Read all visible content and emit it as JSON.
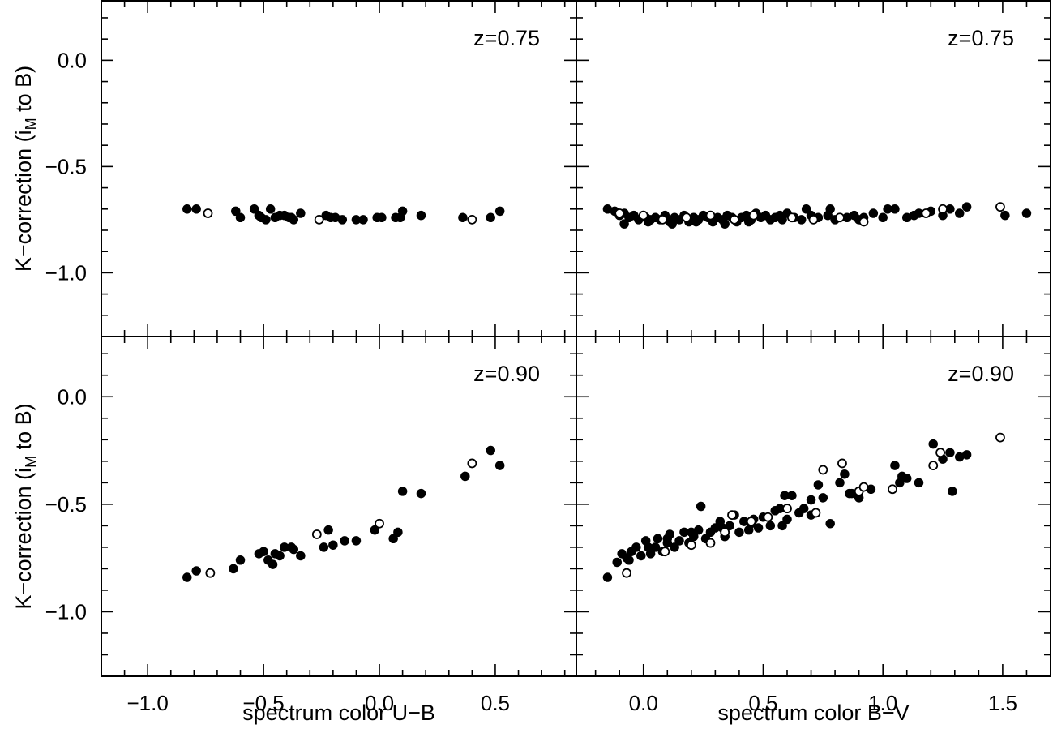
{
  "chart_data": [
    {
      "type": "scatter",
      "panel": "top-left",
      "annotation": "z=0.75",
      "xlabel": "",
      "ylabel": "K−correction (i",
      "ylabel_sub": "M",
      "ylabel_end": " to B)",
      "xlim": [
        -1.2,
        0.85
      ],
      "ylim": [
        -1.3,
        0.28
      ],
      "x_ticks": [
        -1.0,
        -0.5,
        0.0,
        0.5
      ],
      "x_tick_labels": [],
      "y_ticks": [
        0.0,
        -0.5,
        -1.0
      ],
      "y_tick_labels": [
        "0.0",
        "−0.5",
        "−1.0"
      ],
      "series": [
        {
          "marker": "filled",
          "x": [
            -0.83,
            -0.79,
            -0.62,
            -0.6,
            -0.54,
            -0.52,
            -0.51,
            -0.49,
            -0.47,
            -0.45,
            -0.43,
            -0.41,
            -0.39,
            -0.38,
            -0.37,
            -0.34,
            -0.23,
            -0.21,
            -0.19,
            -0.16,
            -0.1,
            -0.07,
            -0.01,
            0.01,
            0.07,
            0.09,
            0.1,
            0.18,
            0.36,
            0.48,
            0.52
          ],
          "y": [
            -0.7,
            -0.7,
            -0.71,
            -0.74,
            -0.7,
            -0.73,
            -0.74,
            -0.75,
            -0.7,
            -0.74,
            -0.73,
            -0.73,
            -0.74,
            -0.74,
            -0.75,
            -0.72,
            -0.73,
            -0.74,
            -0.74,
            -0.75,
            -0.75,
            -0.75,
            -0.74,
            -0.74,
            -0.74,
            -0.74,
            -0.71,
            -0.73,
            -0.74,
            -0.74,
            -0.71
          ]
        },
        {
          "marker": "open",
          "x": [
            -0.74,
            -0.26,
            0.4
          ],
          "y": [
            -0.72,
            -0.75,
            -0.75
          ]
        }
      ]
    },
    {
      "type": "scatter",
      "panel": "top-right",
      "annotation": "z=0.75",
      "xlabel": "",
      "xlim": [
        -0.28,
        1.7
      ],
      "ylim": [
        -1.3,
        0.28
      ],
      "x_ticks": [
        0.0,
        0.5,
        1.0,
        1.5
      ],
      "x_tick_labels": [],
      "y_ticks": [
        0.0,
        -0.5,
        -1.0
      ],
      "series": [
        {
          "marker": "filled",
          "x": [
            -0.15,
            -0.12,
            -0.1,
            -0.08,
            -0.06,
            -0.04,
            -0.02,
            0.01,
            0.03,
            0.05,
            0.07,
            0.09,
            0.11,
            0.13,
            0.15,
            0.17,
            0.19,
            0.21,
            0.23,
            0.25,
            0.27,
            0.29,
            0.31,
            0.33,
            0.35,
            0.37,
            0.39,
            0.41,
            0.43,
            0.45,
            0.47,
            0.49,
            0.51,
            0.53,
            0.55,
            0.57,
            0.6,
            0.63,
            0.66,
            0.7,
            0.73,
            0.77,
            0.8,
            0.85,
            0.88,
            0.92,
            0.96,
            1.0,
            1.05,
            1.1,
            1.15,
            1.2,
            1.25,
            1.28,
            1.32,
            1.35,
            1.51,
            1.6,
            -0.08,
            0.02,
            0.12,
            0.22,
            0.34,
            0.44,
            0.58,
            0.68,
            0.78,
            0.9,
            1.02,
            1.13
          ],
          "y": [
            -0.7,
            -0.71,
            -0.73,
            -0.72,
            -0.74,
            -0.73,
            -0.75,
            -0.74,
            -0.75,
            -0.74,
            -0.75,
            -0.73,
            -0.76,
            -0.74,
            -0.75,
            -0.73,
            -0.76,
            -0.74,
            -0.75,
            -0.73,
            -0.74,
            -0.76,
            -0.74,
            -0.75,
            -0.73,
            -0.74,
            -0.76,
            -0.74,
            -0.73,
            -0.75,
            -0.72,
            -0.74,
            -0.73,
            -0.75,
            -0.74,
            -0.73,
            -0.72,
            -0.74,
            -0.75,
            -0.73,
            -0.74,
            -0.73,
            -0.75,
            -0.74,
            -0.73,
            -0.74,
            -0.72,
            -0.74,
            -0.7,
            -0.74,
            -0.72,
            -0.71,
            -0.73,
            -0.7,
            -0.72,
            -0.69,
            -0.73,
            -0.72,
            -0.77,
            -0.76,
            -0.77,
            -0.76,
            -0.77,
            -0.76,
            -0.75,
            -0.7,
            -0.7,
            -0.75,
            -0.7,
            -0.73
          ]
        },
        {
          "marker": "open",
          "x": [
            -0.1,
            0.0,
            0.08,
            0.18,
            0.28,
            0.38,
            0.46,
            0.62,
            0.71,
            0.82,
            0.92,
            1.18,
            1.25,
            1.49
          ],
          "y": [
            -0.72,
            -0.73,
            -0.75,
            -0.74,
            -0.73,
            -0.75,
            -0.73,
            -0.74,
            -0.75,
            -0.74,
            -0.76,
            -0.72,
            -0.7,
            -0.69
          ]
        }
      ]
    },
    {
      "type": "scatter",
      "panel": "bottom-left",
      "annotation": "z=0.90",
      "xlabel": "spectrum color U−B",
      "ylabel": "K−correction (i",
      "ylabel_sub": "M",
      "ylabel_end": " to B)",
      "xlim": [
        -1.2,
        0.85
      ],
      "ylim": [
        -1.3,
        0.28
      ],
      "x_ticks": [
        -1.0,
        -0.5,
        0.0,
        0.5
      ],
      "x_tick_labels": [
        "−1.0",
        "−0.5",
        "0.0",
        "0.5"
      ],
      "y_ticks": [
        0.0,
        -0.5,
        -1.0
      ],
      "y_tick_labels": [
        "0.0",
        "−0.5",
        "−1.0"
      ],
      "series": [
        {
          "marker": "filled",
          "x": [
            -0.83,
            -0.79,
            -0.63,
            -0.6,
            -0.52,
            -0.5,
            -0.48,
            -0.46,
            -0.45,
            -0.43,
            -0.41,
            -0.38,
            -0.37,
            -0.34,
            -0.24,
            -0.22,
            -0.2,
            -0.15,
            -0.1,
            -0.02,
            0.06,
            0.08,
            0.1,
            0.18,
            0.37,
            0.48,
            0.52
          ],
          "y": [
            -0.84,
            -0.81,
            -0.8,
            -0.76,
            -0.73,
            -0.72,
            -0.76,
            -0.78,
            -0.73,
            -0.74,
            -0.7,
            -0.7,
            -0.71,
            -0.74,
            -0.7,
            -0.62,
            -0.69,
            -0.67,
            -0.67,
            -0.62,
            -0.66,
            -0.63,
            -0.44,
            -0.45,
            -0.37,
            -0.25,
            -0.32
          ]
        },
        {
          "marker": "open",
          "x": [
            -0.73,
            -0.27,
            0.0,
            0.4
          ],
          "y": [
            -0.82,
            -0.64,
            -0.59,
            -0.31
          ]
        }
      ]
    },
    {
      "type": "scatter",
      "panel": "bottom-right",
      "annotation": "z=0.90",
      "xlabel": "spectrum color B−V",
      "xlim": [
        -0.28,
        1.7
      ],
      "ylim": [
        -1.3,
        0.28
      ],
      "x_ticks": [
        0.0,
        0.5,
        1.0,
        1.5
      ],
      "x_tick_labels": [
        "0.0",
        "0.5",
        "1.0",
        "1.5"
      ],
      "y_ticks": [
        0.0,
        -0.5,
        -1.0
      ],
      "series": [
        {
          "marker": "filled",
          "x": [
            -0.15,
            -0.11,
            -0.09,
            -0.07,
            -0.05,
            -0.03,
            -0.01,
            0.01,
            0.03,
            0.05,
            0.06,
            0.08,
            0.1,
            0.11,
            0.13,
            0.15,
            0.17,
            0.19,
            0.21,
            0.23,
            0.24,
            0.26,
            0.28,
            0.3,
            0.32,
            0.34,
            0.36,
            0.38,
            0.4,
            0.42,
            0.44,
            0.46,
            0.48,
            0.5,
            0.53,
            0.55,
            0.57,
            0.59,
            0.6,
            0.62,
            0.65,
            0.67,
            0.7,
            0.73,
            0.75,
            0.78,
            0.82,
            0.84,
            0.87,
            0.9,
            0.95,
            1.05,
            1.07,
            1.1,
            1.15,
            1.21,
            1.25,
            1.28,
            1.29,
            1.32,
            1.35,
            -0.06,
            0.02,
            0.1,
            0.2,
            0.33,
            0.45,
            0.58,
            0.7,
            0.86,
            1.08
          ],
          "y": [
            -0.84,
            -0.77,
            -0.73,
            -0.75,
            -0.72,
            -0.7,
            -0.74,
            -0.67,
            -0.73,
            -0.7,
            -0.66,
            -0.72,
            -0.68,
            -0.64,
            -0.7,
            -0.67,
            -0.63,
            -0.68,
            -0.65,
            -0.62,
            -0.51,
            -0.66,
            -0.63,
            -0.61,
            -0.58,
            -0.65,
            -0.6,
            -0.55,
            -0.63,
            -0.58,
            -0.62,
            -0.57,
            -0.61,
            -0.56,
            -0.6,
            -0.53,
            -0.52,
            -0.46,
            -0.57,
            -0.46,
            -0.54,
            -0.52,
            -0.48,
            -0.41,
            -0.47,
            -0.59,
            -0.4,
            -0.36,
            -0.45,
            -0.47,
            -0.43,
            -0.32,
            -0.4,
            -0.38,
            -0.4,
            -0.22,
            -0.29,
            -0.26,
            -0.44,
            -0.28,
            -0.27,
            -0.76,
            -0.7,
            -0.66,
            -0.63,
            -0.61,
            -0.59,
            -0.6,
            -0.55,
            -0.45,
            -0.37
          ]
        },
        {
          "marker": "open",
          "x": [
            -0.07,
            0.09,
            0.2,
            0.28,
            0.34,
            0.37,
            0.45,
            0.52,
            0.6,
            0.72,
            0.75,
            0.83,
            0.9,
            0.92,
            1.04,
            1.21,
            1.24,
            1.49
          ],
          "y": [
            -0.82,
            -0.72,
            -0.69,
            -0.68,
            -0.63,
            -0.55,
            -0.58,
            -0.56,
            -0.52,
            -0.54,
            -0.34,
            -0.31,
            -0.44,
            -0.42,
            -0.43,
            -0.32,
            -0.26,
            -0.19
          ]
        }
      ]
    }
  ]
}
